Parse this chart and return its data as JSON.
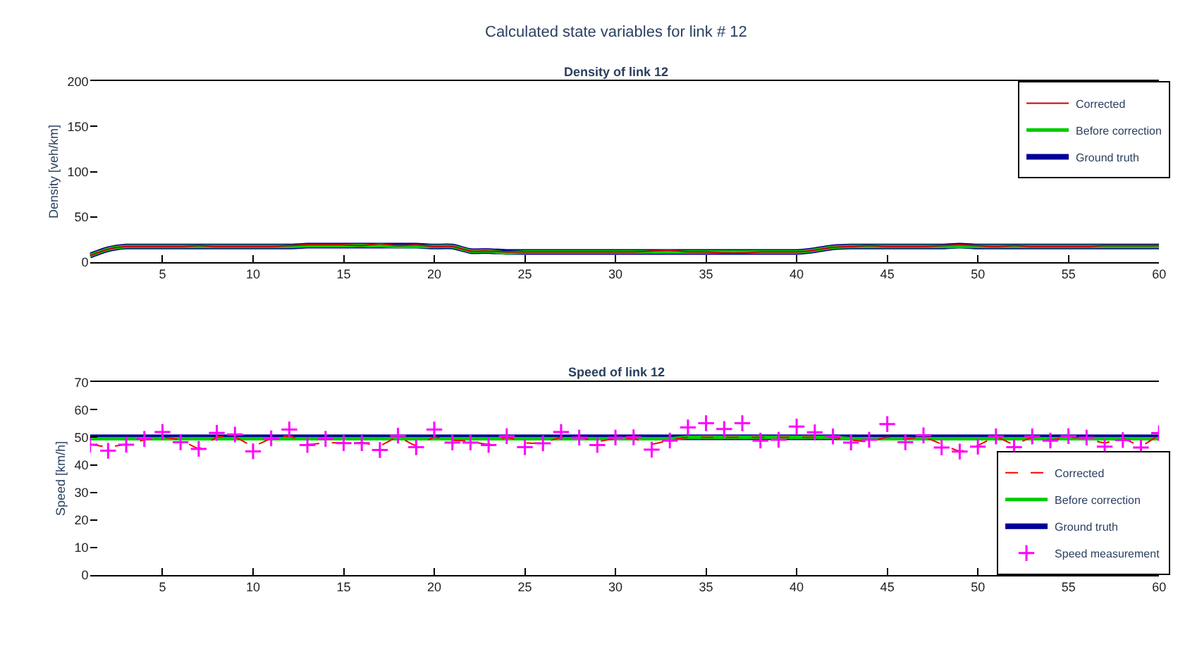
{
  "chart_data": [
    {
      "type": "line",
      "title": "Density of link 12",
      "annotations": [
        "Calculated state variables for link # 12"
      ],
      "ylabel": "Density [veh/km]",
      "x": [
        1,
        2,
        3,
        4,
        5,
        6,
        7,
        8,
        9,
        10,
        11,
        12,
        13,
        14,
        15,
        16,
        17,
        18,
        19,
        20,
        21,
        22,
        23,
        24,
        25,
        26,
        27,
        28,
        29,
        30,
        31,
        32,
        33,
        34,
        35,
        36,
        37,
        38,
        39,
        40,
        41,
        42,
        43,
        44,
        45,
        46,
        47,
        48,
        49,
        50,
        51,
        52,
        53,
        54,
        55,
        56,
        57,
        58,
        59,
        60
      ],
      "xlim": [
        1,
        60
      ],
      "xticks": [
        5,
        10,
        15,
        20,
        25,
        30,
        35,
        40,
        45,
        50,
        55,
        60
      ],
      "ylim": [
        0,
        200
      ],
      "yticks": [
        0,
        50,
        100,
        150,
        200
      ],
      "legend": "top right",
      "series": [
        {
          "name": "Corrected",
          "color": "#cc0000",
          "values": [
            7,
            14,
            17,
            17,
            17,
            17,
            18,
            17,
            17,
            17,
            17,
            18,
            19,
            19,
            19,
            18,
            20,
            18,
            19,
            17,
            17,
            12,
            12,
            11,
            11,
            11,
            11,
            11,
            11,
            11,
            11,
            12,
            13,
            11,
            11,
            10,
            10,
            11,
            11,
            11,
            13,
            16,
            17,
            18,
            17,
            17,
            17,
            18,
            19,
            18,
            17,
            18,
            17,
            17,
            17,
            17,
            18,
            18,
            18,
            18
          ]
        },
        {
          "name": "Before correction",
          "color": "#00cc00",
          "values": [
            7,
            14,
            17,
            17,
            17,
            17,
            17,
            17,
            17,
            17,
            17,
            17,
            18,
            18,
            18,
            18,
            18,
            17,
            17,
            17,
            17,
            12,
            12,
            10,
            11,
            11,
            11,
            11,
            11,
            11,
            11,
            11,
            11,
            11,
            11,
            11,
            11,
            11,
            11,
            11,
            13,
            16,
            17,
            17,
            17,
            17,
            17,
            17,
            17,
            17,
            17,
            17,
            17,
            17,
            17,
            17,
            17,
            17,
            17,
            17
          ]
        },
        {
          "name": "Ground truth",
          "color": "#000099",
          "values": [
            7,
            14,
            17,
            17,
            17,
            17,
            17,
            17,
            17,
            17,
            17,
            17,
            18,
            18,
            18,
            18,
            18,
            18,
            18,
            17,
            17,
            12,
            12,
            11,
            11,
            11,
            11,
            11,
            11,
            11,
            11,
            11,
            11,
            11,
            11,
            11,
            11,
            11,
            11,
            11,
            13,
            16,
            17,
            17,
            17,
            17,
            17,
            17,
            18,
            17,
            17,
            17,
            17,
            17,
            17,
            17,
            17,
            17,
            17,
            17
          ]
        }
      ]
    },
    {
      "type": "line",
      "title": "Speed of link 12",
      "ylabel": "Speed [km/h]",
      "x": [
        1,
        2,
        3,
        4,
        5,
        6,
        7,
        8,
        9,
        10,
        11,
        12,
        13,
        14,
        15,
        16,
        17,
        18,
        19,
        20,
        21,
        22,
        23,
        24,
        25,
        26,
        27,
        28,
        29,
        30,
        31,
        32,
        33,
        34,
        35,
        36,
        37,
        38,
        39,
        40,
        41,
        42,
        43,
        44,
        45,
        46,
        47,
        48,
        49,
        50,
        51,
        52,
        53,
        54,
        55,
        56,
        57,
        58,
        59,
        60
      ],
      "xlim": [
        1,
        60
      ],
      "xticks": [
        5,
        10,
        15,
        20,
        25,
        30,
        35,
        40,
        45,
        50,
        55,
        60
      ],
      "ylim": [
        0,
        70
      ],
      "yticks": [
        0,
        10,
        20,
        30,
        40,
        50,
        60,
        70
      ],
      "legend": "bottom right",
      "series": [
        {
          "name": "Corrected",
          "color": "#ff0000",
          "line_style": "dashed",
          "values": [
            47.5,
            46.5,
            47.5,
            49,
            50,
            49,
            46,
            50,
            50,
            47,
            49.5,
            50.5,
            47.5,
            48,
            48,
            48,
            47,
            50,
            47,
            50,
            49,
            48.5,
            47.5,
            50,
            48,
            48,
            50,
            50,
            48.5,
            49.5,
            49.5,
            47.5,
            49,
            50,
            50,
            50,
            50,
            50,
            50,
            50,
            50,
            50,
            49,
            48.5,
            50,
            49.5,
            50,
            47.5,
            45,
            47,
            50,
            47.5,
            50,
            49,
            50,
            49.5,
            48,
            49.5,
            47,
            51
          ]
        },
        {
          "name": "Before correction",
          "color": "#00cc00",
          "values": [
            49.5,
            49.5,
            49.5,
            49.5,
            49.5,
            49.5,
            49.5,
            49.5,
            49.5,
            49.5,
            49.5,
            49.5,
            49.5,
            49.5,
            49.5,
            49.5,
            49.5,
            49.5,
            49.5,
            49.5,
            49.5,
            49.5,
            49.5,
            49.5,
            49.5,
            49.5,
            49.5,
            49.5,
            49.5,
            49.5,
            49.5,
            49.5,
            49.5,
            50,
            50,
            50,
            50,
            50,
            50,
            50,
            50,
            50,
            49.5,
            49.5,
            49.5,
            49.5,
            49.5,
            49.5,
            49.5,
            49.5,
            49.5,
            49.5,
            49.5,
            49.5,
            49.5,
            49.5,
            49.5,
            49.5,
            49.5,
            49.5
          ]
        },
        {
          "name": "Ground truth",
          "color": "#000099",
          "values": [
            50,
            50,
            50,
            50,
            50,
            50,
            50,
            50,
            50,
            50,
            50,
            50,
            50,
            50,
            50,
            50,
            50,
            50,
            50,
            50,
            50,
            50,
            50,
            50,
            50,
            50,
            50,
            50,
            50,
            50,
            50,
            50,
            50,
            50,
            50,
            50,
            50,
            50,
            50,
            50,
            50,
            50,
            50,
            50,
            50,
            50,
            50,
            50,
            50,
            50,
            50,
            50,
            50,
            50,
            50,
            50,
            50,
            50,
            50,
            50
          ]
        },
        {
          "name": "Speed measurement",
          "type": "scatter",
          "marker": "cross",
          "color": "#ff00ff",
          "values": [
            47.3,
            45.1,
            47.3,
            49.4,
            51.9,
            48.2,
            45.8,
            51.6,
            51.0,
            44.9,
            49.6,
            52.8,
            47.2,
            49.4,
            47.9,
            47.9,
            45.4,
            50.6,
            46.4,
            52.8,
            48.1,
            48.1,
            47.2,
            50.4,
            46.4,
            47.8,
            51.9,
            49.9,
            47.2,
            49.9,
            50.0,
            45.5,
            48.8,
            53.6,
            55.1,
            53.0,
            55.1,
            48.8,
            49.1,
            53.9,
            51.8,
            50.3,
            48.1,
            49.1,
            54.8,
            48.2,
            50.7,
            46.3,
            44.8,
            46.6,
            50.3,
            46.4,
            50.3,
            48.8,
            50.4,
            49.9,
            46.6,
            49.0,
            46.3,
            51.5
          ]
        }
      ]
    }
  ]
}
